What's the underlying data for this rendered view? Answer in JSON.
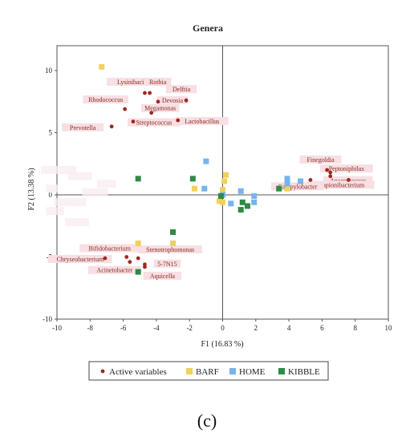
{
  "chart_data": {
    "type": "scatter",
    "title": "Genera",
    "xlabel": "F1 (16.83 %)",
    "ylabel": "F2 (13.38 %)",
    "xlim": [
      -10,
      10
    ],
    "ylim": [
      -10,
      12
    ],
    "xticks": [
      -10,
      -8,
      -6,
      -4,
      -2,
      0,
      2,
      4,
      6,
      8,
      10
    ],
    "yticks": [
      -10,
      -5,
      0,
      5,
      10
    ],
    "grid": false,
    "legend_position": "bottom",
    "colors": {
      "Active variables": "#a0281e",
      "BARF": "#f0d25a",
      "HOME": "#78b4ec",
      "KIBBLE": "#2e8b45",
      "label_bg": "#f7dfe3",
      "label_text": "#8b2a1e"
    },
    "series": [
      {
        "name": "Active variables",
        "marker": "circle",
        "points": [
          {
            "x": -4.7,
            "y": 8.2,
            "label": "Lysinibacillus"
          },
          {
            "x": -4.4,
            "y": 8.2,
            "label": "Rothia"
          },
          {
            "x": -2.2,
            "y": 7.6,
            "label": "Delftia"
          },
          {
            "x": -5.9,
            "y": 6.9,
            "label": "Rhodococcus"
          },
          {
            "x": -3.9,
            "y": 7.5,
            "label": "Devosia"
          },
          {
            "x": -4.3,
            "y": 6.6,
            "label": "Megamonas"
          },
          {
            "x": -2.7,
            "y": 6.0,
            "label": "Lactobacillus"
          },
          {
            "x": -6.7,
            "y": 5.5,
            "label": "Prevotella"
          },
          {
            "x": -5.4,
            "y": 5.9,
            "label": "Streptococcus"
          },
          {
            "x": 6.3,
            "y": 2.0,
            "label": "Finegoldia"
          },
          {
            "x": 6.5,
            "y": 1.8,
            "label": "Peptoniphilus"
          },
          {
            "x": 6.5,
            "y": 1.5,
            "label": "Anaerococcus"
          },
          {
            "x": 7.6,
            "y": 1.2,
            "label": "Propionibacterium"
          },
          {
            "x": 5.3,
            "y": 1.2,
            "label": "Campylobacter"
          },
          {
            "x": -5.8,
            "y": -5.0,
            "label": "Bifidobacterium"
          },
          {
            "x": -7.1,
            "y": -5.1,
            "label": "Chryseobacterium"
          },
          {
            "x": -5.1,
            "y": -5.1,
            "label": "Stenotrophomonas"
          },
          {
            "x": -5.6,
            "y": -5.4,
            "label": "Acinetobacter"
          },
          {
            "x": -4.7,
            "y": -5.6,
            "label": "5-7N15"
          },
          {
            "x": -4.7,
            "y": -5.8,
            "label": "Aquicella"
          }
        ]
      },
      {
        "name": "BARF",
        "marker": "square",
        "points": [
          {
            "x": -7.3,
            "y": 10.3
          },
          {
            "x": -1.7,
            "y": 0.5
          },
          {
            "x": 0.2,
            "y": 1.6
          },
          {
            "x": 0.0,
            "y": 0.4
          },
          {
            "x": 0.1,
            "y": 1.1
          },
          {
            "x": 0.0,
            "y": -0.6
          },
          {
            "x": -0.2,
            "y": -0.5
          },
          {
            "x": 3.9,
            "y": 0.5
          },
          {
            "x": -5.1,
            "y": -3.9
          },
          {
            "x": -3.0,
            "y": -3.9
          }
        ]
      },
      {
        "name": "HOME",
        "marker": "square",
        "points": [
          {
            "x": -1.0,
            "y": 2.7
          },
          {
            "x": -1.1,
            "y": 0.5
          },
          {
            "x": 1.1,
            "y": 0.3
          },
          {
            "x": 0.5,
            "y": -0.7
          },
          {
            "x": 1.9,
            "y": -0.1
          },
          {
            "x": 1.9,
            "y": -0.6
          },
          {
            "x": 3.9,
            "y": 1.3
          },
          {
            "x": 3.9,
            "y": 0.9
          },
          {
            "x": 4.7,
            "y": 1.1
          },
          {
            "x": 0.0,
            "y": 0.0
          }
        ]
      },
      {
        "name": "KIBBLE",
        "marker": "square",
        "points": [
          {
            "x": -5.1,
            "y": 1.3
          },
          {
            "x": -1.8,
            "y": 1.3
          },
          {
            "x": -0.1,
            "y": -0.1
          },
          {
            "x": 1.2,
            "y": -0.6
          },
          {
            "x": 1.5,
            "y": -0.9
          },
          {
            "x": 1.1,
            "y": -1.2
          },
          {
            "x": 3.4,
            "y": 0.5
          },
          {
            "x": -3.0,
            "y": -3.0
          },
          {
            "x": -5.1,
            "y": -6.2
          }
        ]
      }
    ]
  },
  "legend": {
    "items": [
      "Active variables",
      "BARF",
      "HOME",
      "KIBBLE"
    ]
  },
  "caption": "(c)"
}
